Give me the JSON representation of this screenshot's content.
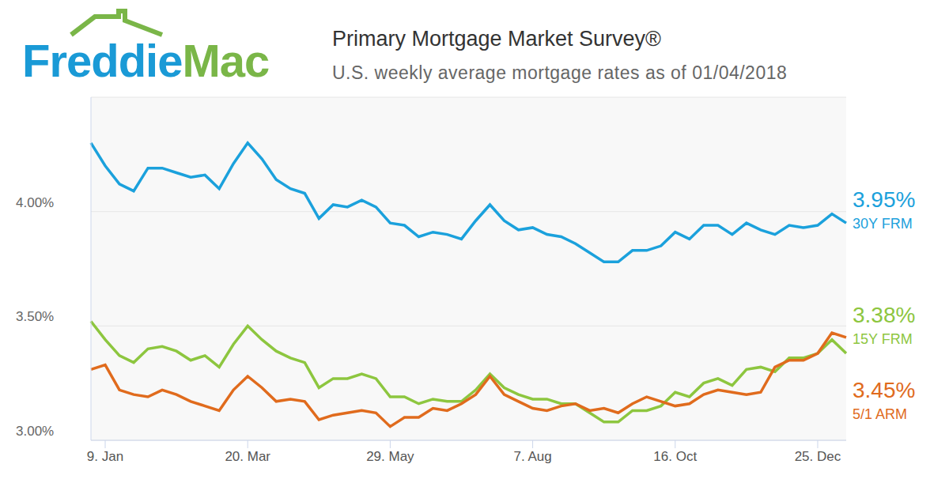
{
  "logo": [
    "Freddie",
    "Mac"
  ],
  "chart_data": {
    "type": "line",
    "title": "Primary Mortgage Market Survey®",
    "subtitle": "U.S. weekly average mortgage rates as of 01/04/2018",
    "categories": [
      null,
      "9. Jan",
      null,
      null,
      null,
      null,
      null,
      null,
      null,
      null,
      null,
      "20. Mar",
      null,
      null,
      null,
      null,
      null,
      null,
      null,
      null,
      null,
      "29. May",
      null,
      null,
      null,
      null,
      null,
      null,
      null,
      null,
      null,
      "7. Aug",
      null,
      null,
      null,
      null,
      null,
      null,
      null,
      null,
      null,
      "16. Oct",
      null,
      null,
      null,
      null,
      null,
      null,
      null,
      null,
      null,
      "25. Dec",
      null,
      null
    ],
    "ylim": [
      3.0,
      4.5
    ],
    "yticks": [
      {
        "value": 3.0,
        "label": "3.00%"
      },
      {
        "value": 3.5,
        "label": "3.50%"
      },
      {
        "value": 4.0,
        "label": "4.00%"
      }
    ],
    "grid": true,
    "series": [
      {
        "name": "30Y FRM",
        "color": "#1ba1dc",
        "values": [
          4.3,
          4.2,
          4.12,
          4.09,
          4.19,
          4.19,
          4.17,
          4.15,
          4.16,
          4.1,
          4.21,
          4.3,
          4.23,
          4.14,
          4.1,
          4.08,
          3.97,
          4.03,
          4.02,
          4.05,
          4.02,
          3.95,
          3.94,
          3.89,
          3.91,
          3.9,
          3.88,
          3.96,
          4.03,
          3.96,
          3.92,
          3.93,
          3.9,
          3.89,
          3.86,
          3.82,
          3.78,
          3.78,
          3.83,
          3.83,
          3.85,
          3.91,
          3.88,
          3.94,
          3.94,
          3.9,
          3.95,
          3.92,
          3.9,
          3.94,
          3.93,
          3.94,
          3.99,
          3.95
        ],
        "value_labels": [
          null,
          null,
          null,
          null,
          null,
          null,
          null,
          null,
          null,
          null,
          null,
          null,
          null,
          null,
          null,
          null,
          null,
          null,
          null,
          null,
          null,
          null,
          null,
          null,
          null,
          null,
          null,
          null,
          null,
          null,
          null,
          null,
          null,
          null,
          null,
          null,
          null,
          null,
          null,
          null,
          null,
          null,
          null,
          null,
          null,
          null,
          null,
          null,
          null,
          null,
          null,
          null,
          null,
          "3.95%"
        ]
      },
      {
        "name": "15Y FRM",
        "color": "#8dc63f",
        "values": [
          3.52,
          3.44,
          3.37,
          3.34,
          3.4,
          3.41,
          3.39,
          3.35,
          3.37,
          3.32,
          3.42,
          3.5,
          3.44,
          3.39,
          3.36,
          3.34,
          3.23,
          3.27,
          3.27,
          3.29,
          3.27,
          3.19,
          3.19,
          3.16,
          3.18,
          3.17,
          3.17,
          3.22,
          3.29,
          3.23,
          3.2,
          3.18,
          3.18,
          3.16,
          3.16,
          3.12,
          3.08,
          3.08,
          3.13,
          3.13,
          3.15,
          3.21,
          3.19,
          3.25,
          3.27,
          3.24,
          3.31,
          3.32,
          3.3,
          3.36,
          3.36,
          3.38,
          3.44,
          3.38
        ],
        "value_labels": [
          null,
          null,
          null,
          null,
          null,
          null,
          null,
          null,
          null,
          null,
          null,
          null,
          null,
          null,
          null,
          null,
          null,
          null,
          null,
          null,
          null,
          null,
          null,
          null,
          null,
          null,
          null,
          null,
          null,
          null,
          null,
          null,
          null,
          null,
          null,
          null,
          null,
          null,
          null,
          null,
          null,
          null,
          null,
          null,
          null,
          null,
          null,
          null,
          null,
          null,
          null,
          null,
          null,
          "3.38%"
        ]
      },
      {
        "name": "5/1 ARM",
        "color": "#e06b1d",
        "values": [
          3.31,
          3.33,
          3.22,
          3.2,
          3.19,
          3.22,
          3.2,
          3.17,
          3.15,
          3.13,
          3.22,
          3.28,
          3.23,
          3.17,
          3.18,
          3.17,
          3.09,
          3.11,
          3.12,
          3.13,
          3.12,
          3.06,
          3.1,
          3.1,
          3.14,
          3.13,
          3.16,
          3.2,
          3.28,
          3.2,
          3.17,
          3.14,
          3.13,
          3.15,
          3.16,
          3.13,
          3.14,
          3.12,
          3.16,
          3.19,
          3.17,
          3.15,
          3.16,
          3.2,
          3.22,
          3.21,
          3.2,
          3.21,
          3.32,
          3.35,
          3.35,
          3.38,
          3.47,
          3.45
        ],
        "value_labels": [
          null,
          null,
          null,
          null,
          null,
          null,
          null,
          null,
          null,
          null,
          null,
          null,
          null,
          null,
          null,
          null,
          null,
          null,
          null,
          null,
          null,
          null,
          null,
          null,
          null,
          null,
          null,
          null,
          null,
          null,
          null,
          null,
          null,
          null,
          null,
          null,
          null,
          null,
          null,
          null,
          null,
          null,
          null,
          null,
          null,
          null,
          null,
          null,
          null,
          null,
          null,
          null,
          null,
          "3.45%"
        ]
      }
    ]
  }
}
